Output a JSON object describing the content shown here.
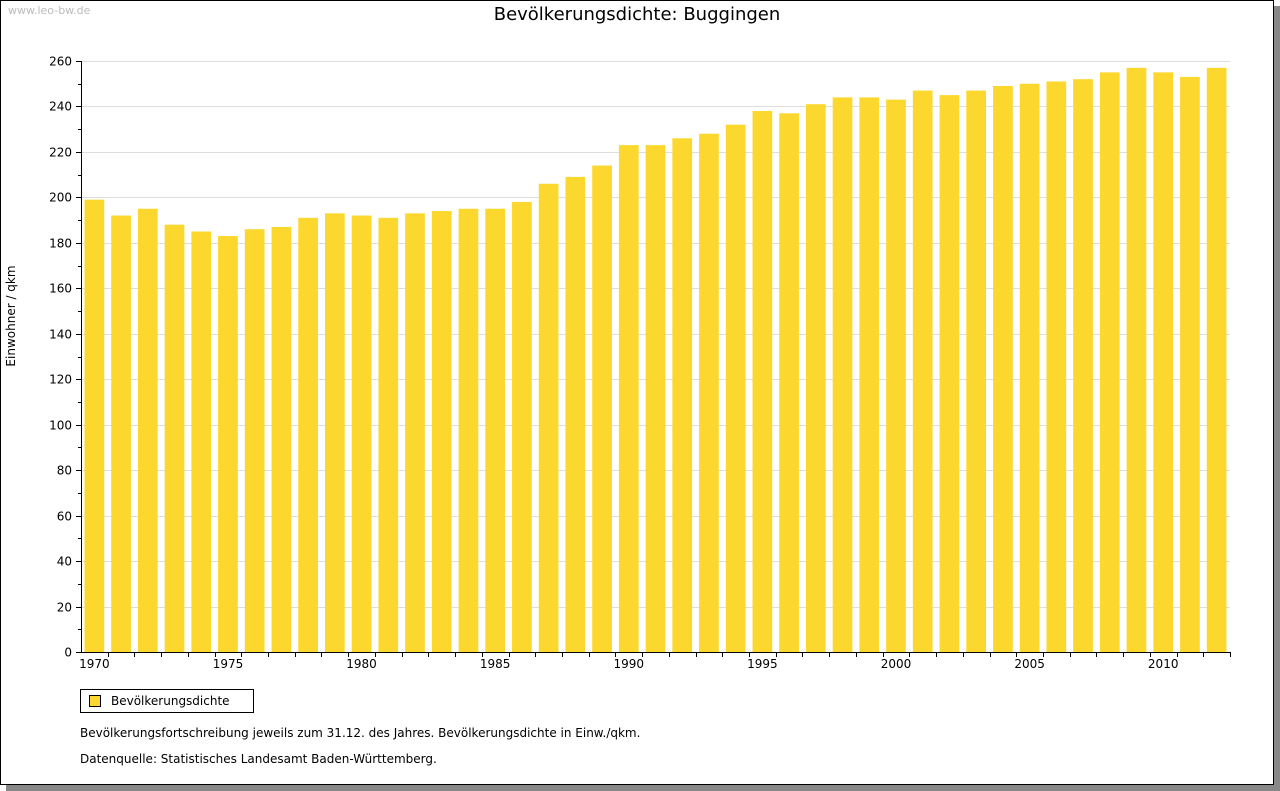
{
  "watermark": "www.leo-bw.de",
  "chart_data": {
    "type": "bar",
    "title": "Bevölkerungsdichte: Buggingen",
    "xlabel": "",
    "ylabel": "Einwohner / qkm",
    "ylim": [
      0,
      260
    ],
    "yticks": [
      0,
      20,
      40,
      60,
      80,
      100,
      120,
      140,
      160,
      180,
      200,
      220,
      240,
      260
    ],
    "xtick_labels": [
      "1970",
      "1975",
      "1980",
      "1985",
      "1990",
      "1995",
      "2000",
      "2005",
      "2010"
    ],
    "grid": true,
    "color": "#fcd82e",
    "categories": [
      1970,
      1971,
      1972,
      1973,
      1974,
      1975,
      1976,
      1977,
      1978,
      1979,
      1980,
      1981,
      1982,
      1983,
      1984,
      1985,
      1986,
      1987,
      1988,
      1989,
      1990,
      1991,
      1992,
      1993,
      1994,
      1995,
      1996,
      1997,
      1998,
      1999,
      2000,
      2001,
      2002,
      2003,
      2004,
      2005,
      2006,
      2007,
      2008,
      2009,
      2010,
      2011,
      2012
    ],
    "values": [
      199,
      192,
      195,
      188,
      185,
      183,
      186,
      187,
      191,
      193,
      192,
      191,
      193,
      194,
      195,
      195,
      198,
      206,
      209,
      214,
      223,
      223,
      226,
      228,
      232,
      238,
      237,
      241,
      244,
      244,
      243,
      247,
      245,
      247,
      249,
      250,
      251,
      252,
      255,
      257,
      255,
      253,
      257
    ],
    "legend": [
      "Bevölkerungsdichte"
    ],
    "legend_placement": "bottom-left"
  },
  "notes": [
    "Bevölkerungsfortschreibung jeweils zum 31.12. des Jahres. Bevölkerungsdichte in Einw./qkm.",
    "Datenquelle: Statistisches Landesamt Baden-Württemberg."
  ]
}
